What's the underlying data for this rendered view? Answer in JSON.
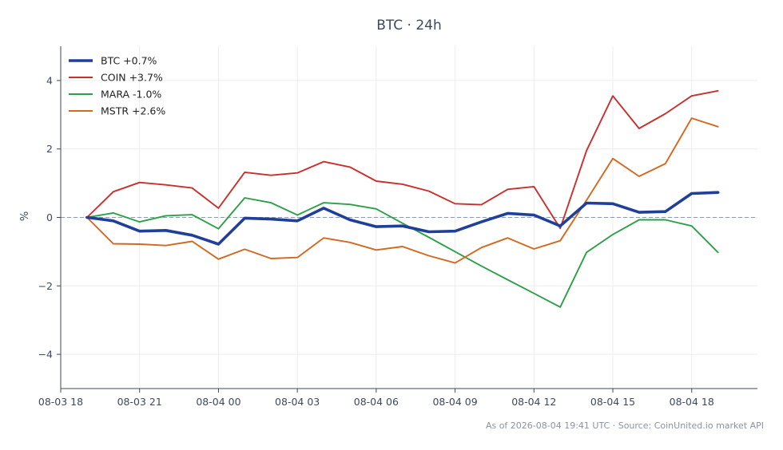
{
  "chart_data": {
    "type": "line",
    "title": "BTC · 24h",
    "xlabel": "",
    "ylabel": "%",
    "ylim": [
      -5,
      5
    ],
    "xlim": [
      "2026-08-03 18:00",
      "2026-08-04 20:30"
    ],
    "yticks": [
      -4,
      -2,
      0,
      2,
      4
    ],
    "ytick_labels": [
      "−4",
      "−2",
      "0",
      "2",
      "4"
    ],
    "xticks": [
      "2026-08-03 18:00",
      "2026-08-03 21:00",
      "2026-08-04 00:00",
      "2026-08-04 03:00",
      "2026-08-04 06:00",
      "2026-08-04 09:00",
      "2026-08-04 12:00",
      "2026-08-04 15:00",
      "2026-08-04 18:00"
    ],
    "xtick_labels": [
      "08-03 18",
      "08-03 21",
      "08-04 00",
      "08-04 03",
      "08-04 06",
      "08-04 09",
      "08-04 12",
      "08-04 15",
      "08-04 18"
    ],
    "grid": true,
    "legend_position": "top-left",
    "reference_line": {
      "y": 0,
      "style": "dashed",
      "color": "#8a9bb0"
    },
    "series": [
      {
        "name": "BTC +0.7%",
        "color": "#1f3f99",
        "emphasis": true,
        "points": [
          [
            "2026-08-03 19:00",
            0.0
          ],
          [
            "2026-08-03 20:00",
            -0.1
          ],
          [
            "2026-08-03 21:00",
            -0.4
          ],
          [
            "2026-08-03 22:00",
            -0.38
          ],
          [
            "2026-08-03 23:00",
            -0.52
          ],
          [
            "2026-08-04 00:00",
            -0.78
          ],
          [
            "2026-08-04 01:00",
            -0.02
          ],
          [
            "2026-08-04 02:00",
            -0.05
          ],
          [
            "2026-08-04 03:00",
            -0.1
          ],
          [
            "2026-08-04 04:00",
            0.27
          ],
          [
            "2026-08-04 05:00",
            -0.07
          ],
          [
            "2026-08-04 06:00",
            -0.27
          ],
          [
            "2026-08-04 07:00",
            -0.25
          ],
          [
            "2026-08-04 08:00",
            -0.42
          ],
          [
            "2026-08-04 09:00",
            -0.4
          ],
          [
            "2026-08-04 10:00",
            -0.13
          ],
          [
            "2026-08-04 11:00",
            0.12
          ],
          [
            "2026-08-04 12:00",
            0.07
          ],
          [
            "2026-08-04 13:00",
            -0.25
          ],
          [
            "2026-08-04 14:00",
            0.42
          ],
          [
            "2026-08-04 15:00",
            0.4
          ],
          [
            "2026-08-04 16:00",
            0.15
          ],
          [
            "2026-08-04 17:00",
            0.17
          ],
          [
            "2026-08-04 18:00",
            0.7
          ],
          [
            "2026-08-04 19:00",
            0.73
          ]
        ]
      },
      {
        "name": "COIN +3.7%",
        "color": "#c9302c",
        "emphasis": false,
        "points": [
          [
            "2026-08-03 19:00",
            0.0
          ],
          [
            "2026-08-03 20:00",
            0.75
          ],
          [
            "2026-08-03 21:00",
            1.02
          ],
          [
            "2026-08-03 22:00",
            0.95
          ],
          [
            "2026-08-03 23:00",
            0.86
          ],
          [
            "2026-08-04 00:00",
            0.27
          ],
          [
            "2026-08-04 01:00",
            1.32
          ],
          [
            "2026-08-04 02:00",
            1.23
          ],
          [
            "2026-08-04 03:00",
            1.3
          ],
          [
            "2026-08-04 04:00",
            1.63
          ],
          [
            "2026-08-04 05:00",
            1.47
          ],
          [
            "2026-08-04 06:00",
            1.06
          ],
          [
            "2026-08-04 07:00",
            0.97
          ],
          [
            "2026-08-04 08:00",
            0.77
          ],
          [
            "2026-08-04 09:00",
            0.4
          ],
          [
            "2026-08-04 10:00",
            0.37
          ],
          [
            "2026-08-04 11:00",
            0.82
          ],
          [
            "2026-08-04 12:00",
            0.9
          ],
          [
            "2026-08-04 13:00",
            -0.32
          ],
          [
            "2026-08-04 14:00",
            1.95
          ],
          [
            "2026-08-04 15:00",
            3.55
          ],
          [
            "2026-08-04 16:00",
            2.6
          ],
          [
            "2026-08-04 17:00",
            3.03
          ],
          [
            "2026-08-04 18:00",
            3.55
          ],
          [
            "2026-08-04 19:00",
            3.7
          ]
        ]
      },
      {
        "name": "MARA -1.0%",
        "color": "#2ca048",
        "emphasis": false,
        "points": [
          [
            "2026-08-03 19:00",
            0.0
          ],
          [
            "2026-08-03 20:00",
            0.13
          ],
          [
            "2026-08-03 21:00",
            -0.13
          ],
          [
            "2026-08-03 22:00",
            0.05
          ],
          [
            "2026-08-03 23:00",
            0.08
          ],
          [
            "2026-08-04 00:00",
            -0.33
          ],
          [
            "2026-08-04 01:00",
            0.57
          ],
          [
            "2026-08-04 02:00",
            0.43
          ],
          [
            "2026-08-04 03:00",
            0.07
          ],
          [
            "2026-08-04 04:00",
            0.43
          ],
          [
            "2026-08-04 05:00",
            0.38
          ],
          [
            "2026-08-04 06:00",
            0.25
          ],
          [
            "2026-08-04 07:00",
            -0.17
          ],
          [
            "2026-08-04 08:00",
            -0.58
          ],
          [
            "2026-08-04 09:00",
            -1.0
          ],
          [
            "2026-08-04 10:00",
            -1.42
          ],
          [
            "2026-08-04 11:00",
            -1.82
          ],
          [
            "2026-08-04 12:00",
            -2.22
          ],
          [
            "2026-08-04 13:00",
            -2.62
          ],
          [
            "2026-08-04 14:00",
            -1.02
          ],
          [
            "2026-08-04 15:00",
            -0.5
          ],
          [
            "2026-08-04 16:00",
            -0.07
          ],
          [
            "2026-08-04 17:00",
            -0.07
          ],
          [
            "2026-08-04 18:00",
            -0.25
          ],
          [
            "2026-08-04 19:00",
            -1.02
          ]
        ]
      },
      {
        "name": "MSTR +2.6%",
        "color": "#d2691e",
        "emphasis": false,
        "points": [
          [
            "2026-08-03 19:00",
            0.0
          ],
          [
            "2026-08-03 20:00",
            -0.77
          ],
          [
            "2026-08-03 21:00",
            -0.78
          ],
          [
            "2026-08-03 22:00",
            -0.82
          ],
          [
            "2026-08-03 23:00",
            -0.7
          ],
          [
            "2026-08-04 00:00",
            -1.22
          ],
          [
            "2026-08-04 01:00",
            -0.93
          ],
          [
            "2026-08-04 02:00",
            -1.2
          ],
          [
            "2026-08-04 03:00",
            -1.17
          ],
          [
            "2026-08-04 04:00",
            -0.6
          ],
          [
            "2026-08-04 05:00",
            -0.73
          ],
          [
            "2026-08-04 06:00",
            -0.95
          ],
          [
            "2026-08-04 07:00",
            -0.85
          ],
          [
            "2026-08-04 08:00",
            -1.12
          ],
          [
            "2026-08-04 09:00",
            -1.33
          ],
          [
            "2026-08-04 10:00",
            -0.88
          ],
          [
            "2026-08-04 11:00",
            -0.6
          ],
          [
            "2026-08-04 12:00",
            -0.92
          ],
          [
            "2026-08-04 13:00",
            -0.68
          ],
          [
            "2026-08-04 14:00",
            0.5
          ],
          [
            "2026-08-04 15:00",
            1.72
          ],
          [
            "2026-08-04 16:00",
            1.2
          ],
          [
            "2026-08-04 17:00",
            1.57
          ],
          [
            "2026-08-04 18:00",
            2.9
          ],
          [
            "2026-08-04 19:00",
            2.65
          ]
        ]
      }
    ]
  },
  "footer": {
    "note": "As of 2026-08-04 19:41 UTC · Source: CoinUnited.io market API"
  }
}
